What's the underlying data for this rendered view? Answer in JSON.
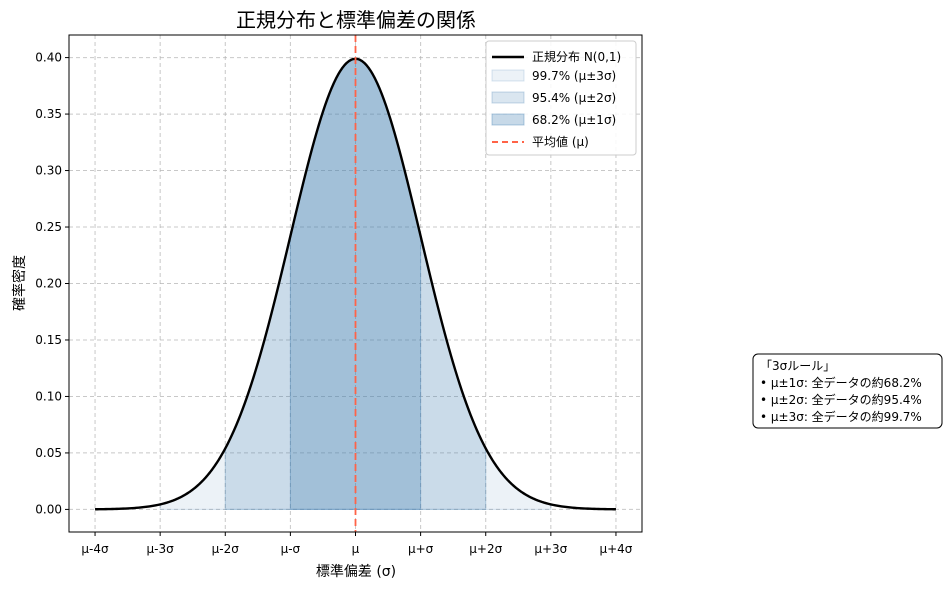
{
  "chart_data": {
    "type": "area",
    "title": "正規分布と標準偏差の関係",
    "xlabel": "標準偏差 (σ)",
    "ylabel": "確率密度",
    "xlim": [
      -4.4,
      4.4
    ],
    "ylim": [
      -0.02,
      0.42
    ],
    "grid": true,
    "legend_position": "top-right",
    "x_ticks": [
      -4,
      -3,
      -2,
      -1,
      0,
      1,
      2,
      3,
      4
    ],
    "x_tick_labels": [
      "μ-4σ",
      "μ-3σ",
      "μ-2σ",
      "μ-σ",
      "μ",
      "μ+σ",
      "μ+2σ",
      "μ+3σ",
      "μ+4σ"
    ],
    "y_ticks": [
      0.0,
      0.05,
      0.1,
      0.15,
      0.2,
      0.25,
      0.3,
      0.35,
      0.4
    ],
    "y_tick_labels": [
      "0.00",
      "0.05",
      "0.10",
      "0.15",
      "0.20",
      "0.25",
      "0.30",
      "0.35",
      "0.40"
    ],
    "curve": {
      "name": "正規分布 N(0,1)",
      "color": "#000000",
      "x": [
        -4.0,
        -3.5,
        -3.0,
        -2.5,
        -2.0,
        -1.5,
        -1.0,
        -0.5,
        0.0,
        0.5,
        1.0,
        1.5,
        2.0,
        2.5,
        3.0,
        3.5,
        4.0
      ],
      "y": [
        0.0001,
        0.0009,
        0.0044,
        0.0175,
        0.054,
        0.1295,
        0.242,
        0.3521,
        0.3989,
        0.3521,
        0.242,
        0.1295,
        0.054,
        0.0175,
        0.0044,
        0.0009,
        0.0001
      ]
    },
    "bands": [
      {
        "name": "99.7% (μ±3σ)",
        "from": -3,
        "to": 3,
        "color": "#4682b4",
        "alpha": 0.1
      },
      {
        "name": "95.4% (μ±2σ)",
        "from": -2,
        "to": 2,
        "color": "#4682b4",
        "alpha": 0.2
      },
      {
        "name": "68.2% (μ±1σ)",
        "from": -1,
        "to": 1,
        "color": "#4682b4",
        "alpha": 0.3
      }
    ],
    "mean_line": {
      "name": "平均値 (μ)",
      "x": 0,
      "color": "#ff6347",
      "style": "dashed"
    },
    "annotation": {
      "lines": [
        "「3σルール」",
        "• μ±1σ: 全データの約68.2%",
        "• μ±2σ: 全データの約95.4%",
        "• μ±3σ: 全データの約99.7%"
      ]
    }
  }
}
